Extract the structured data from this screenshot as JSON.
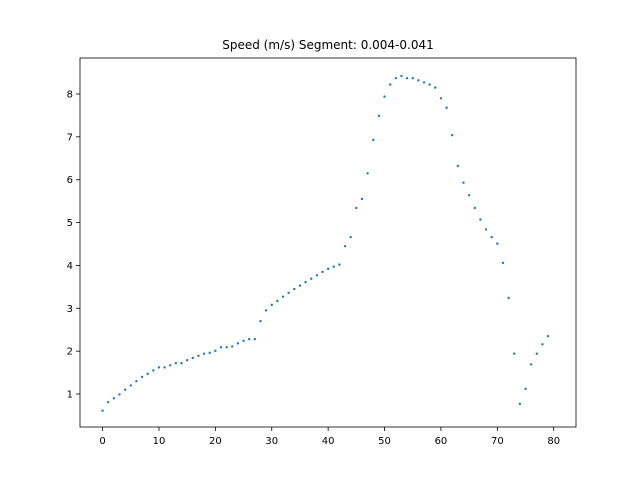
{
  "chart_data": {
    "type": "scatter",
    "title": "Speed (m/s) Segment: 0.004-0.041",
    "xlabel": "",
    "ylabel": "",
    "xlim": [
      -4,
      83.95
    ],
    "ylim": [
      0.23,
      8.84
    ],
    "xticks": [
      0,
      10,
      20,
      30,
      40,
      50,
      60,
      70,
      80
    ],
    "yticks": [
      1,
      2,
      3,
      4,
      5,
      6,
      7,
      8
    ],
    "grid": false,
    "marker_color": "#1f77b4",
    "series": [
      {
        "x": [
          0,
          1,
          2,
          3,
          4,
          5,
          6,
          7,
          8,
          9,
          10,
          11,
          12,
          13,
          14,
          15,
          16,
          17,
          18,
          19,
          20,
          21,
          22,
          23,
          24,
          25,
          26,
          27,
          28,
          29,
          30,
          31,
          32,
          33,
          34,
          35,
          36,
          37,
          38,
          39,
          40,
          41,
          42,
          43,
          44,
          45,
          46,
          47,
          48,
          49,
          50,
          51,
          52,
          53,
          54,
          55,
          56,
          57,
          58,
          59,
          60,
          61,
          62,
          63,
          64,
          65,
          66,
          67,
          68,
          69,
          70,
          71,
          72,
          73,
          74,
          75,
          76,
          77,
          78,
          79
        ],
        "y": [
          0.61,
          0.81,
          0.9,
          0.99,
          1.1,
          1.2,
          1.3,
          1.4,
          1.47,
          1.55,
          1.62,
          1.62,
          1.67,
          1.72,
          1.72,
          1.79,
          1.84,
          1.89,
          1.94,
          1.96,
          2.01,
          2.09,
          2.09,
          2.11,
          2.18,
          2.24,
          2.28,
          2.28,
          2.7,
          2.95,
          3.08,
          3.17,
          3.27,
          3.36,
          3.45,
          3.53,
          3.61,
          3.69,
          3.77,
          3.85,
          3.92,
          3.97,
          4.02,
          4.45,
          4.66,
          5.34,
          5.55,
          6.15,
          6.93,
          7.49,
          7.94,
          8.22,
          8.37,
          8.42,
          8.37,
          8.37,
          8.32,
          8.27,
          8.22,
          8.15,
          7.9,
          7.68,
          7.04,
          6.32,
          5.93,
          5.64,
          5.34,
          5.07,
          4.84,
          4.66,
          4.51,
          4.06,
          3.24,
          1.94,
          0.77,
          1.12,
          1.69,
          1.94,
          2.16,
          2.35
        ]
      }
    ]
  }
}
